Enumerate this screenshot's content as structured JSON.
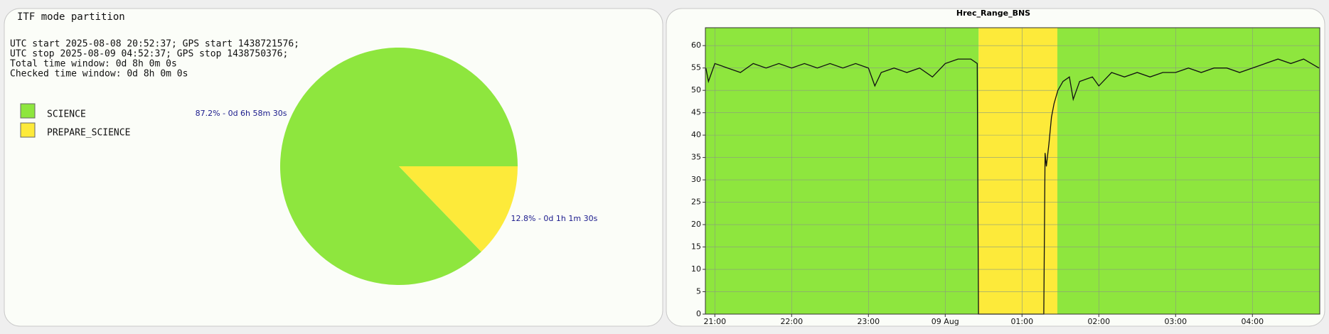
{
  "chart_data": [
    {
      "type": "pie",
      "title": "ITF mode partition",
      "info": [
        "UTC start 2025-08-08 20:52:37; GPS start 1438721576;",
        "UTC stop 2025-08-09 04:52:37; GPS stop 1438750376;",
        "Total time window: 0d 8h 0m 0s",
        "Checked time window: 0d 8h 0m 0s"
      ],
      "categories": [
        "SCIENCE",
        "PREPARE_SCIENCE"
      ],
      "values": [
        87.2,
        12.8
      ],
      "value_labels": [
        "87.2% - 0d 6h 58m 30s",
        "12.8% - 0d 1h 1m 30s"
      ],
      "colors": [
        "#8ee63e",
        "#fdea3a"
      ]
    },
    {
      "type": "line",
      "title": "Hrec_Range_BNS",
      "xlim": [
        "08 Aug 20:52:37",
        "09 Aug 04:52:37"
      ],
      "xticks": [
        {
          "value": "08 Aug 21:00",
          "label": "21:00"
        },
        {
          "value": "08 Aug 22:00",
          "label": "22:00"
        },
        {
          "value": "08 Aug 23:00",
          "label": "23:00"
        },
        {
          "value": "09 Aug 00:00",
          "label": "09 Aug"
        },
        {
          "value": "09 Aug 01:00",
          "label": "01:00"
        },
        {
          "value": "09 Aug 02:00",
          "label": "02:00"
        },
        {
          "value": "09 Aug 03:00",
          "label": "03:00"
        },
        {
          "value": "09 Aug 04:00",
          "label": "04:00"
        }
      ],
      "ylim": [
        0,
        64
      ],
      "yticks": [
        0,
        5,
        10,
        15,
        20,
        25,
        30,
        35,
        40,
        45,
        50,
        55,
        60
      ],
      "grid": true,
      "bands": [
        {
          "start": "08 Aug 20:52:37",
          "end": "09 Aug 00:26:07",
          "color": "#8ee63e"
        },
        {
          "start": "09 Aug 00:26:07",
          "end": "09 Aug 01:27:37",
          "color": "#fdea3a"
        },
        {
          "start": "09 Aug 01:27:37",
          "end": "09 Aug 04:52:37",
          "color": "#8ee63e"
        }
      ],
      "line_color": "#111111",
      "x": [
        "08 Aug 20:53",
        "08 Aug 20:55",
        "08 Aug 21:00",
        "08 Aug 21:10",
        "08 Aug 21:20",
        "08 Aug 21:30",
        "08 Aug 21:40",
        "08 Aug 21:50",
        "08 Aug 22:00",
        "08 Aug 22:10",
        "08 Aug 22:20",
        "08 Aug 22:30",
        "08 Aug 22:40",
        "08 Aug 22:50",
        "08 Aug 23:00",
        "08 Aug 23:05",
        "08 Aug 23:10",
        "08 Aug 23:20",
        "08 Aug 23:30",
        "08 Aug 23:40",
        "08 Aug 23:50",
        "09 Aug 00:00",
        "09 Aug 00:10",
        "09 Aug 00:20",
        "09 Aug 00:25",
        "09 Aug 00:26",
        "09 Aug 01:17",
        "09 Aug 01:18",
        "09 Aug 01:19",
        "09 Aug 01:21",
        "09 Aug 01:23",
        "09 Aug 01:25",
        "09 Aug 01:28",
        "09 Aug 01:32",
        "09 Aug 01:37",
        "09 Aug 01:40",
        "09 Aug 01:45",
        "09 Aug 01:55",
        "09 Aug 02:00",
        "09 Aug 02:10",
        "09 Aug 02:20",
        "09 Aug 02:30",
        "09 Aug 02:40",
        "09 Aug 02:50",
        "09 Aug 03:00",
        "09 Aug 03:10",
        "09 Aug 03:20",
        "09 Aug 03:30",
        "09 Aug 03:40",
        "09 Aug 03:50",
        "09 Aug 04:00",
        "09 Aug 04:10",
        "09 Aug 04:20",
        "09 Aug 04:30",
        "09 Aug 04:40",
        "09 Aug 04:52"
      ],
      "values": [
        55,
        52,
        56,
        55,
        54,
        56,
        55,
        56,
        55,
        56,
        55,
        56,
        55,
        56,
        55,
        51,
        54,
        55,
        54,
        55,
        53,
        56,
        57,
        57,
        56,
        0,
        0,
        36,
        33,
        38,
        44,
        47,
        50,
        52,
        53,
        48,
        52,
        53,
        51,
        54,
        53,
        54,
        53,
        54,
        54,
        55,
        54,
        55,
        55,
        54,
        55,
        56,
        57,
        56,
        57,
        55
      ]
    }
  ]
}
